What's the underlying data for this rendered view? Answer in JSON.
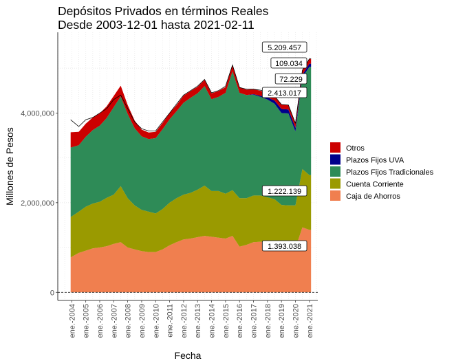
{
  "chart_data": {
    "type": "area",
    "title": "Depósitos Privados en términos Reales",
    "subtitle": "Desde 2003-12-01 hasta 2021-02-11",
    "xlabel": "Fecha",
    "ylabel": "Millones de Pesos",
    "ylim": [
      0,
      5800000
    ],
    "yticks": [
      0,
      2000000,
      4000000
    ],
    "ytick_labels": [
      "0",
      "2,000,000",
      "4,000,000"
    ],
    "xtick_labels": [
      "ene.-2004",
      "ene.-2005",
      "ene.-2006",
      "ene.-2007",
      "ene.-2008",
      "ene.-2009",
      "ene.-2010",
      "ene.-2011",
      "ene.-2012",
      "ene.-2013",
      "ene.-2014",
      "ene.-2015",
      "ene.-2016",
      "ene.-2017",
      "ene.-2018",
      "ene.-2019",
      "ene.-2020",
      "ene.-2021"
    ],
    "x": [
      2003.92,
      2004.5,
      2005.0,
      2005.5,
      2006.0,
      2006.5,
      2007.0,
      2007.5,
      2008.0,
      2008.5,
      2009.0,
      2009.5,
      2010.0,
      2010.5,
      2011.0,
      2011.5,
      2012.0,
      2012.5,
      2013.0,
      2013.5,
      2014.0,
      2014.5,
      2015.0,
      2015.5,
      2016.0,
      2016.5,
      2017.0,
      2017.5,
      2018.0,
      2018.5,
      2019.0,
      2019.5,
      2020.0,
      2020.5,
      2021.0,
      2021.12
    ],
    "legend_position": "right",
    "grid": true,
    "baseline_dashed": 0,
    "series": [
      {
        "name": "Caja de Ahorros",
        "color": "#f07f4f",
        "values": [
          780000,
          880000,
          930000,
          980000,
          1000000,
          1030000,
          1080000,
          1120000,
          1000000,
          960000,
          920000,
          900000,
          900000,
          960000,
          1050000,
          1120000,
          1180000,
          1200000,
          1230000,
          1260000,
          1240000,
          1220000,
          1200000,
          1260000,
          1020000,
          1060000,
          1120000,
          1130000,
          1120000,
          1100000,
          1000000,
          1000000,
          980000,
          1450000,
          1393038,
          1393038
        ]
      },
      {
        "name": "Cuenta Corriente",
        "color": "#9a9a00",
        "values": [
          900000,
          920000,
          980000,
          1000000,
          1020000,
          1080000,
          1100000,
          1250000,
          1100000,
          980000,
          920000,
          900000,
          860000,
          900000,
          950000,
          980000,
          1000000,
          1020000,
          1060000,
          1120000,
          1020000,
          1040000,
          1000000,
          1020000,
          1080000,
          1040000,
          1040000,
          1030000,
          1000000,
          980000,
          950000,
          940000,
          960000,
          1300000,
          1222139,
          1222139
        ]
      },
      {
        "name": "Plazos Fijos Tradicionales",
        "color": "#2e8b57",
        "values": [
          1550000,
          1480000,
          1560000,
          1640000,
          1700000,
          1780000,
          1950000,
          2000000,
          1880000,
          1720000,
          1640000,
          1620000,
          1680000,
          1780000,
          1860000,
          1940000,
          2050000,
          2120000,
          2150000,
          2220000,
          2050000,
          2100000,
          2250000,
          2650000,
          2350000,
          2300000,
          2250000,
          2200000,
          2180000,
          2130000,
          2050000,
          2050000,
          1650000,
          2050000,
          2413017,
          2413017
        ]
      },
      {
        "name": "Plazos Fijos UVA",
        "color": "#00008b",
        "values": [
          0,
          0,
          0,
          0,
          0,
          0,
          0,
          0,
          0,
          0,
          0,
          0,
          0,
          0,
          0,
          0,
          0,
          0,
          0,
          0,
          0,
          0,
          0,
          0,
          0,
          0,
          10000,
          25000,
          50000,
          70000,
          90000,
          90000,
          80000,
          55000,
          72229,
          72229
        ]
      },
      {
        "name": "Otros",
        "color": "#cc0000",
        "values": [
          340000,
          300000,
          290000,
          280000,
          270000,
          260000,
          250000,
          240000,
          200000,
          170000,
          150000,
          145000,
          140000,
          140000,
          140000,
          140000,
          160000,
          150000,
          145000,
          140000,
          130000,
          130000,
          130000,
          130000,
          120000,
          120000,
          115000,
          110000,
          110000,
          100000,
          100000,
          100000,
          100000,
          100000,
          109034,
          109034
        ]
      }
    ],
    "total_line_values": [
      3850000,
      3700000,
      3850000,
      3900000,
      4000000,
      4100000,
      4300000,
      4400000,
      4100000,
      3800000,
      3650000,
      3600000,
      3600000,
      3800000,
      4000000,
      4200000,
      4400000,
      4500000,
      4600000,
      4750000,
      4450000,
      4500000,
      4600000,
      5070000,
      4570000,
      4530000,
      4530000,
      4510000,
      4460000,
      4380000,
      4190000,
      4180000,
      3770000,
      4955000,
      5209457,
      5209457
    ],
    "annotations": [
      "5.209.457",
      "109.034",
      "72.229",
      "2.413.017",
      "1.222.139",
      "1.393.038"
    ]
  }
}
